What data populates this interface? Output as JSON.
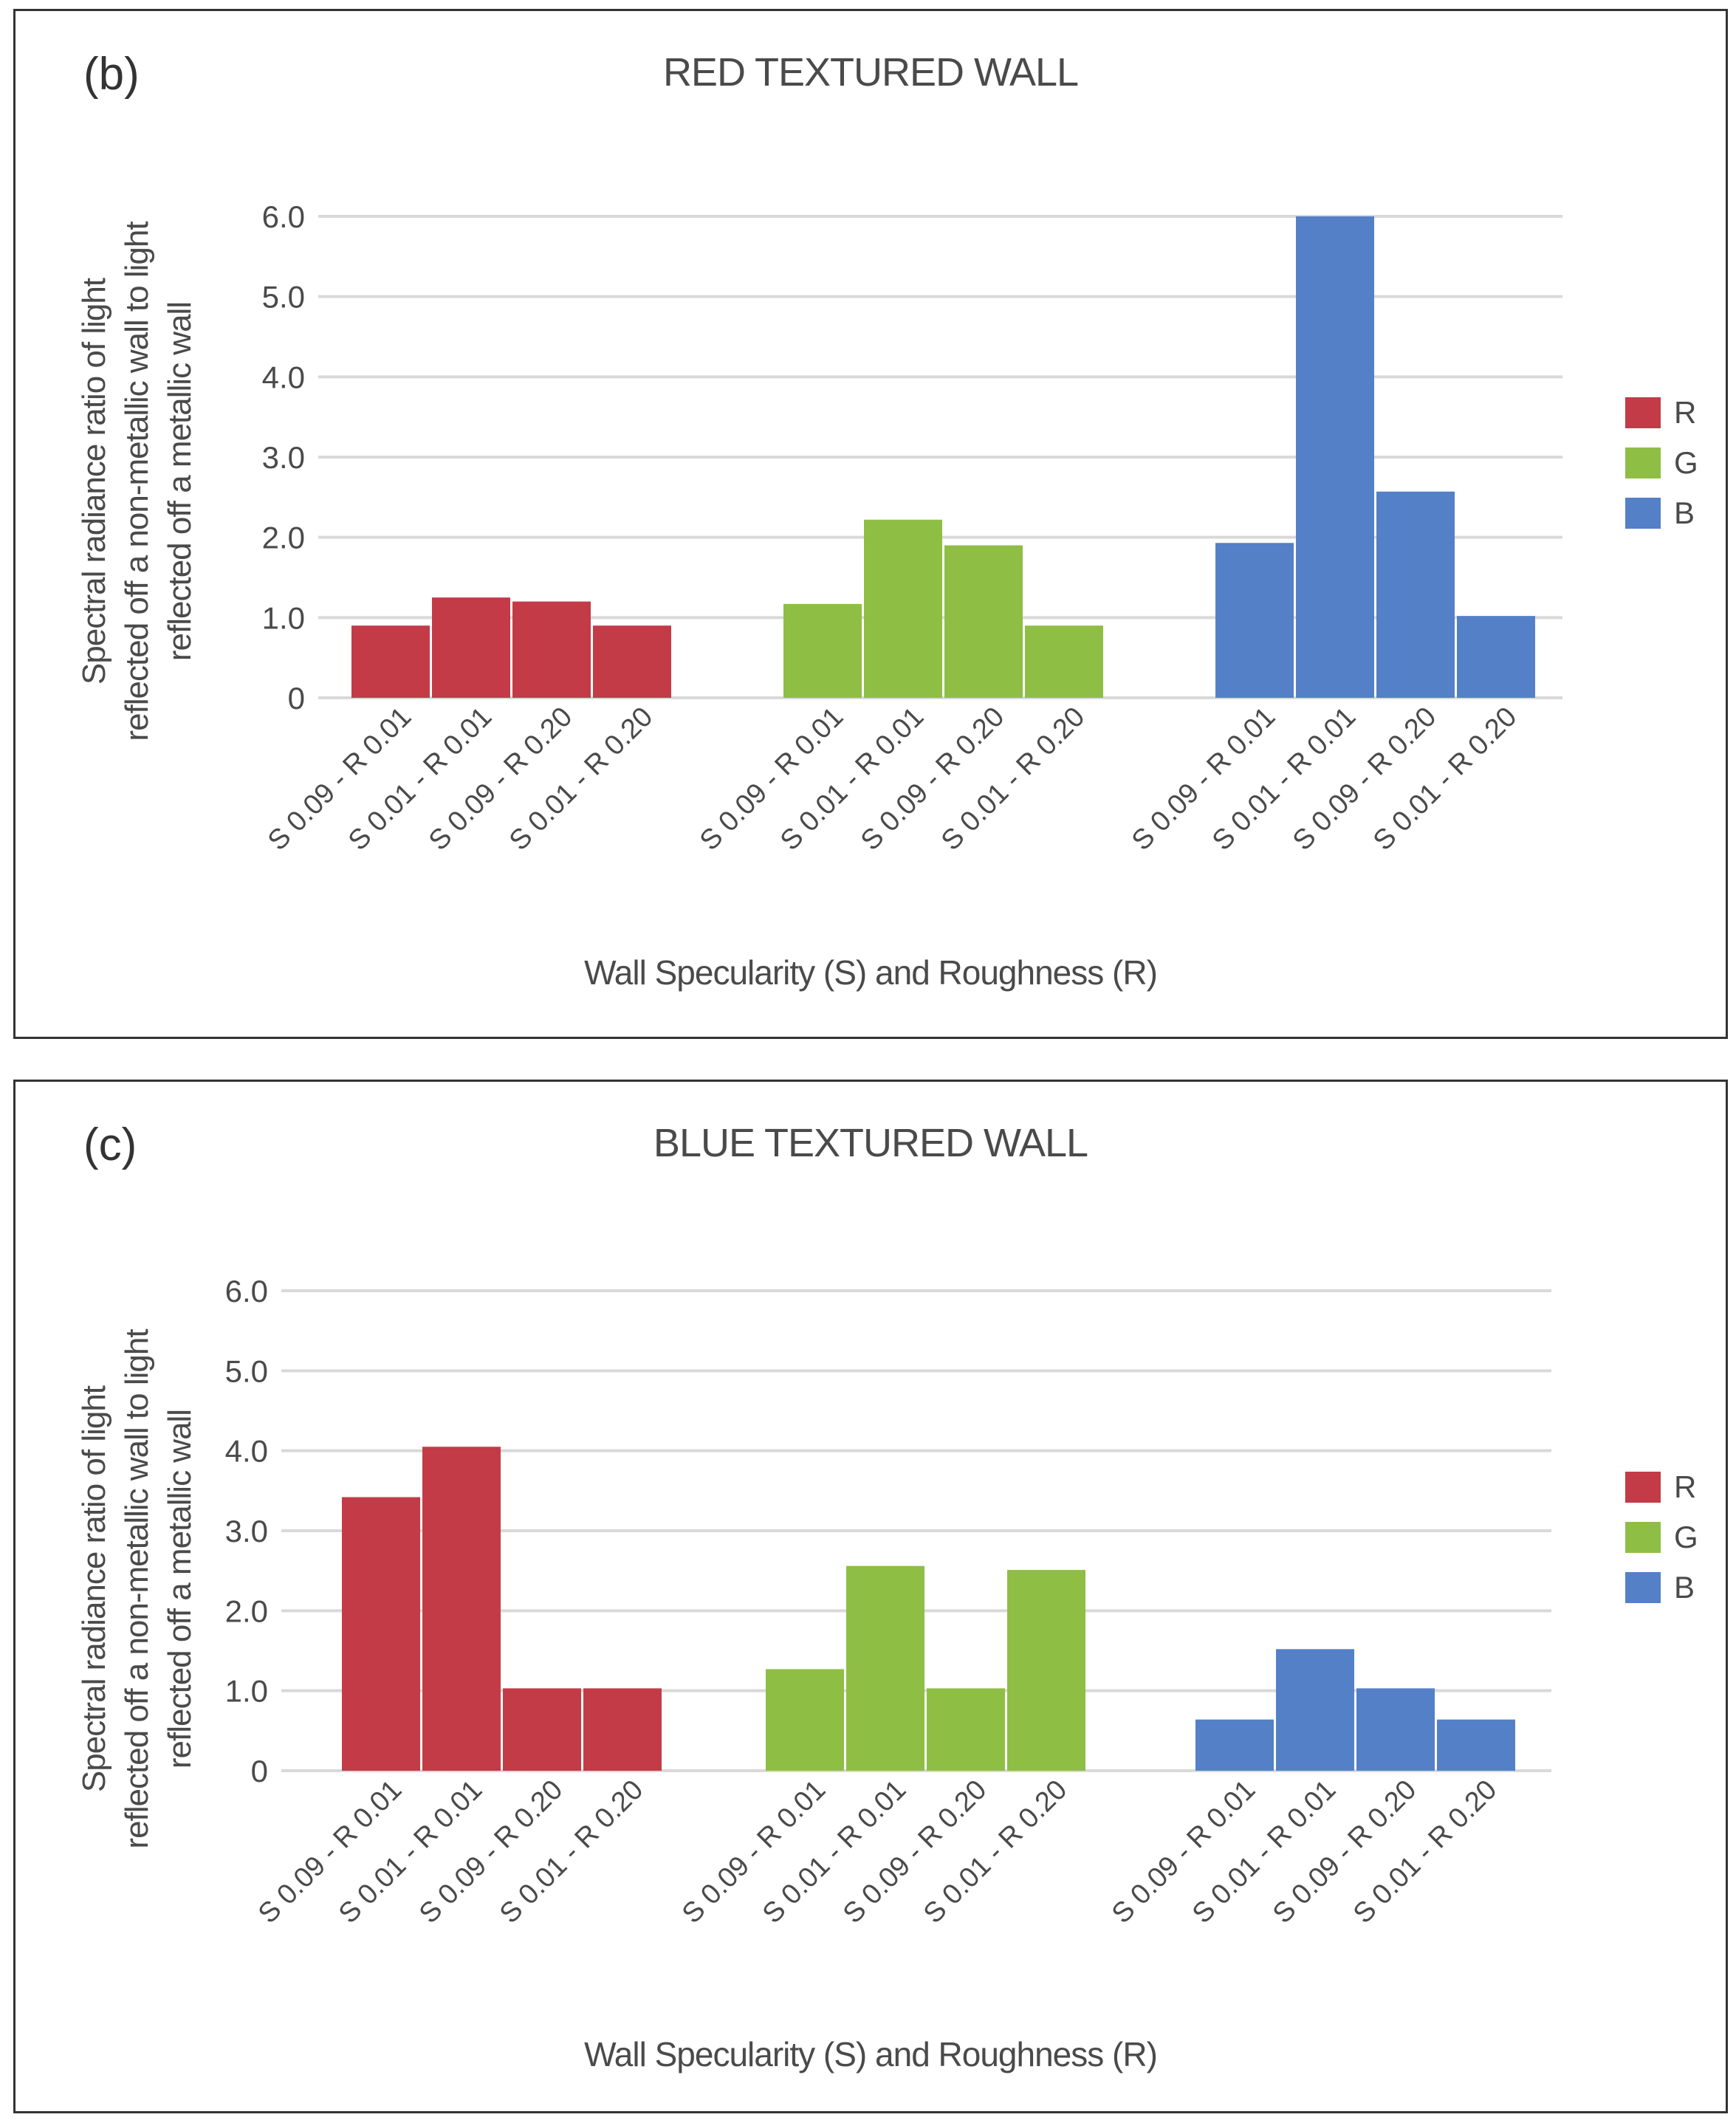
{
  "panels": [
    {
      "panel_label": "(b)",
      "legend": [
        {
          "label": "R",
          "color": "#c23b47"
        },
        {
          "label": "G",
          "color": "#8fbe45"
        },
        {
          "label": "B",
          "color": "#5380c7"
        }
      ]
    },
    {
      "panel_label": "(c)",
      "legend": [
        {
          "label": "R",
          "color": "#c23b47"
        },
        {
          "label": "G",
          "color": "#8fbe45"
        },
        {
          "label": "B",
          "color": "#5380c7"
        }
      ]
    }
  ],
  "chart_data": [
    {
      "type": "bar",
      "title": "RED TEXTURED WALL",
      "xlabel": "Wall Specularity (S) and Roughness (R)",
      "ylabel": "Spectral radiance ratio of light reflected off a non-metallic wall to light reflected off a metallic wall",
      "ylim": [
        0,
        6
      ],
      "yticks": [
        "0",
        "1.0",
        "2.0",
        "3.0",
        "4.0",
        "5.0",
        "6.0"
      ],
      "grid": true,
      "legend_position": "right",
      "categories": [
        "S 0.09 - R 0.01",
        "S 0.01 - R 0.01",
        "S 0.09 - R 0.20",
        "S 0.01 - R 0.20"
      ],
      "series": [
        {
          "name": "R",
          "color": "#c23b47",
          "values": [
            0.9,
            1.25,
            1.2,
            0.9
          ]
        },
        {
          "name": "G",
          "color": "#8fbe45",
          "values": [
            1.17,
            2.22,
            1.9,
            0.9
          ]
        },
        {
          "name": "B",
          "color": "#5380c7",
          "values": [
            1.93,
            6.0,
            2.57,
            1.02
          ]
        }
      ]
    },
    {
      "type": "bar",
      "title": "BLUE TEXTURED WALL",
      "xlabel": "Wall Specularity (S) and Roughness (R)",
      "ylabel": "Spectral radiance ratio of light reflected off a non-metallic wall to light reflected off a metallic wall",
      "ylim": [
        0,
        6
      ],
      "yticks": [
        "0",
        "1.0",
        "2.0",
        "3.0",
        "4.0",
        "5.0",
        "6.0"
      ],
      "grid": true,
      "legend_position": "right",
      "categories": [
        "S 0.09 - R 0.01",
        "S 0.01 - R 0.01",
        "S 0.09 - R 0.20",
        "S 0.01 - R 0.20"
      ],
      "series": [
        {
          "name": "R",
          "color": "#c23b47",
          "values": [
            3.42,
            4.05,
            1.03,
            1.03
          ]
        },
        {
          "name": "G",
          "color": "#8fbe45",
          "values": [
            1.27,
            2.56,
            1.03,
            2.51
          ]
        },
        {
          "name": "B",
          "color": "#5380c7",
          "values": [
            0.64,
            1.52,
            1.03,
            0.64
          ]
        }
      ]
    }
  ]
}
